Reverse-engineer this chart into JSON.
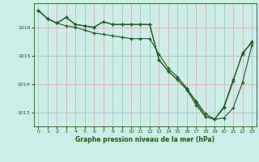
{
  "bg_color": "#cceee8",
  "grid_color": "#d4b8b8",
  "line_color": "#1a5c1a",
  "marker": "+",
  "title": "Graphe pression niveau de la mer (hPa)",
  "title_color": "#1a5c1a",
  "ylim": [
    1012.5,
    1016.85
  ],
  "xlim": [
    -0.5,
    23.5
  ],
  "yticks": [
    1013,
    1014,
    1015,
    1016
  ],
  "xticks": [
    0,
    1,
    2,
    3,
    4,
    5,
    6,
    7,
    8,
    9,
    10,
    11,
    12,
    13,
    14,
    15,
    16,
    17,
    18,
    19,
    20,
    21,
    22,
    23
  ],
  "series1": [
    1016.6,
    1016.3,
    1016.15,
    1016.05,
    1016.0,
    1015.9,
    1015.8,
    1015.75,
    1015.7,
    1015.65,
    1015.6,
    1015.6,
    1015.6,
    1015.05,
    1014.55,
    1014.25,
    1013.85,
    1013.35,
    1012.85,
    1012.75,
    1013.15,
    1014.1,
    1015.1,
    1015.45
  ],
  "series2": [
    1016.6,
    1016.3,
    1016.15,
    1016.35,
    1016.1,
    1016.05,
    1016.0,
    1016.2,
    1016.1,
    1016.1,
    1016.1,
    1016.1,
    1016.1,
    1014.85,
    1014.45,
    1014.15,
    1013.8,
    1013.4,
    1012.95,
    1012.75,
    1012.8,
    1013.15,
    1014.05,
    1015.35
  ],
  "series3": [
    1016.6,
    1016.3,
    1016.15,
    1016.35,
    1016.1,
    1016.05,
    1016.0,
    1016.2,
    1016.1,
    1016.1,
    1016.1,
    1016.1,
    1016.1,
    1014.85,
    1014.45,
    1014.15,
    1013.8,
    1013.25,
    1012.85,
    1012.75,
    1013.2,
    1014.15,
    1015.05,
    1015.5
  ]
}
